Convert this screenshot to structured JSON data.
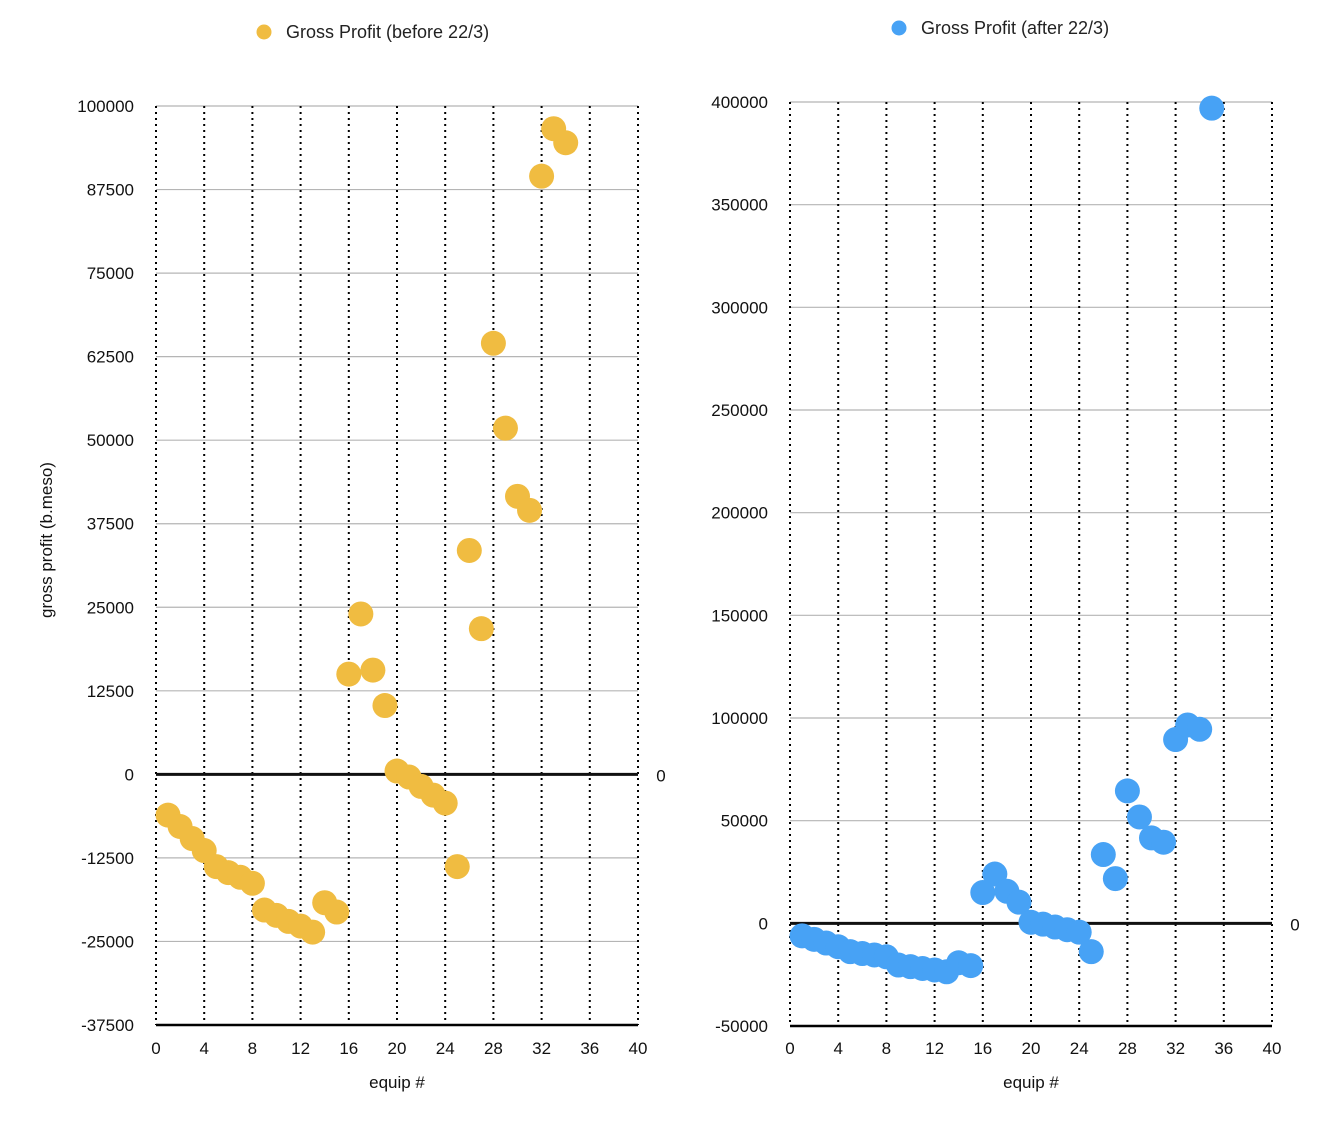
{
  "chart_data": [
    {
      "type": "scatter",
      "title": "",
      "legend": {
        "label": "Gross Profit (before 22/3)",
        "position": "top"
      },
      "color": "#F0BC41",
      "xlabel": "equip #",
      "ylabel": "gross profit (b.meso)",
      "xlim": [
        0,
        40
      ],
      "ylim": [
        -37500,
        100000
      ],
      "xticks": [
        "0",
        "4",
        "8",
        "12",
        "16",
        "20",
        "24",
        "28",
        "32",
        "36",
        "40"
      ],
      "yticks": [
        "100000",
        "87500",
        "75000",
        "62500",
        "50000",
        "37500",
        "25000",
        "12500",
        "0",
        "-12500",
        "-25000",
        "-37500"
      ],
      "zero_line_label": "0",
      "grid": {
        "horizontal": true,
        "vertical_dotted": true
      },
      "series": [
        {
          "name": "Gross Profit (before 22/3)",
          "x": [
            1,
            2,
            3,
            4,
            5,
            6,
            7,
            8,
            9,
            10,
            11,
            12,
            13,
            14,
            15,
            16,
            17,
            18,
            19,
            20,
            21,
            22,
            23,
            24,
            25,
            26,
            27,
            28,
            29,
            30,
            31,
            32,
            33,
            34
          ],
          "y": [
            -6100,
            -7800,
            -9600,
            -11400,
            -13800,
            -14700,
            -15400,
            -16300,
            -20300,
            -21100,
            -22000,
            -22700,
            -23600,
            -19200,
            -20600,
            15000,
            24000,
            15600,
            10300,
            500,
            -400,
            -1800,
            -3100,
            -4300,
            -13800,
            33500,
            21800,
            64500,
            51800,
            41600,
            39500,
            89500,
            96600,
            94500
          ]
        }
      ]
    },
    {
      "type": "scatter",
      "title": "",
      "legend": {
        "label": "Gross Profit (after 22/3)",
        "position": "top"
      },
      "color": "#47A2F5",
      "xlabel": "equip #",
      "ylabel": "",
      "xlim": [
        0,
        40
      ],
      "ylim": [
        -50000,
        400000
      ],
      "xticks": [
        "0",
        "4",
        "8",
        "12",
        "16",
        "20",
        "24",
        "28",
        "32",
        "36",
        "40"
      ],
      "yticks": [
        "400000",
        "350000",
        "300000",
        "250000",
        "200000",
        "150000",
        "100000",
        "50000",
        "0",
        "-50000"
      ],
      "zero_line_label": "0",
      "grid": {
        "horizontal": true,
        "vertical_dotted": true
      },
      "series": [
        {
          "name": "Gross Profit (after 22/3)",
          "x": [
            1,
            2,
            3,
            4,
            5,
            6,
            7,
            8,
            9,
            10,
            11,
            12,
            13,
            14,
            15,
            16,
            17,
            18,
            19,
            20,
            21,
            22,
            23,
            24,
            25,
            26,
            27,
            28,
            29,
            30,
            31,
            32,
            33,
            34,
            35
          ],
          "y": [
            -6100,
            -7800,
            -9600,
            -11400,
            -13800,
            -14700,
            -15400,
            -16300,
            -20300,
            -21100,
            -22000,
            -22700,
            -23600,
            -19200,
            -20600,
            15000,
            24000,
            15600,
            10300,
            500,
            -400,
            -1800,
            -3100,
            -4300,
            -13800,
            33500,
            21800,
            64500,
            51800,
            41600,
            39500,
            89500,
            96600,
            94500,
            397000
          ]
        }
      ]
    }
  ]
}
